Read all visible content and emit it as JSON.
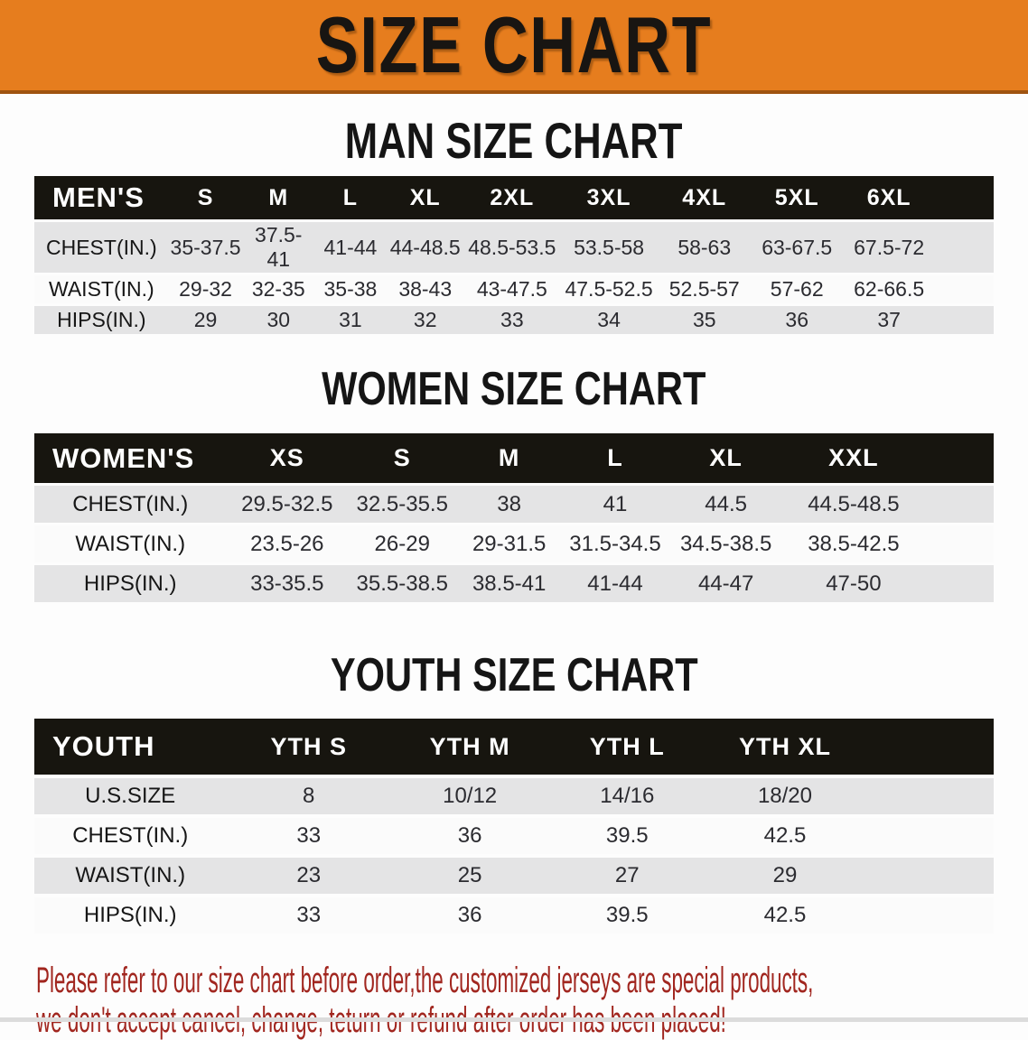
{
  "banner": {
    "title": "SIZE CHART"
  },
  "colors": {
    "banner_bg": "#e67d1e",
    "banner_text": "#181512",
    "header_bar_bg": "#17150f",
    "header_bar_text": "#ffffff",
    "stripe_grey": "#e4e4e5",
    "stripe_white": "#fbfbfb",
    "disclaimer_red": "#a1261f",
    "footer_strip": "#dcdcdc"
  },
  "disclaimer": {
    "line1": "Please refer to our size chart before order,the customized jerseys are special products,",
    "line2": "we don't accept cancel, change, teturn or refund after order has been placed!"
  },
  "chart_data": [
    {
      "type": "table",
      "title": "MAN SIZE CHART",
      "header_label": "MEN'S",
      "columns": [
        "S",
        "M",
        "L",
        "XL",
        "2XL",
        "3XL",
        "4XL",
        "5XL",
        "6XL"
      ],
      "rows": [
        {
          "label": "CHEST(IN.)",
          "values": [
            "35-37.5",
            "37.5-41",
            "41-44",
            "44-48.5",
            "48.5-53.5",
            "53.5-58",
            "58-63",
            "63-67.5",
            "67.5-72"
          ]
        },
        {
          "label": "WAIST(IN.)",
          "values": [
            "29-32",
            "32-35",
            "35-38",
            "38-43",
            "43-47.5",
            "47.5-52.5",
            "52.5-57",
            "57-62",
            "62-66.5"
          ]
        },
        {
          "label": "HIPS(IN.)",
          "values": [
            "29",
            "30",
            "31",
            "32",
            "33",
            "34",
            "35",
            "36",
            "37"
          ]
        }
      ]
    },
    {
      "type": "table",
      "title": "WOMEN SIZE CHART",
      "header_label": "WOMEN'S",
      "columns": [
        "XS",
        "S",
        "M",
        "L",
        "XL",
        "XXL"
      ],
      "rows": [
        {
          "label": "CHEST(IN.)",
          "values": [
            "29.5-32.5",
            "32.5-35.5",
            "38",
            "41",
            "44.5",
            "44.5-48.5"
          ]
        },
        {
          "label": "WAIST(IN.)",
          "values": [
            "23.5-26",
            "26-29",
            "29-31.5",
            "31.5-34.5",
            "34.5-38.5",
            "38.5-42.5"
          ]
        },
        {
          "label": "HIPS(IN.)",
          "values": [
            "33-35.5",
            "35.5-38.5",
            "38.5-41",
            "41-44",
            "44-47",
            "47-50"
          ]
        }
      ]
    },
    {
      "type": "table",
      "title": "YOUTH SIZE CHART",
      "header_label": "YOUTH",
      "columns": [
        "YTH S",
        "YTH M",
        "YTH L",
        "YTH XL"
      ],
      "rows": [
        {
          "label": "U.S.SIZE",
          "values": [
            "8",
            "10/12",
            "14/16",
            "18/20"
          ]
        },
        {
          "label": "CHEST(IN.)",
          "values": [
            "33",
            "36",
            "39.5",
            "42.5"
          ]
        },
        {
          "label": "WAIST(IN.)",
          "values": [
            "23",
            "25",
            "27",
            "29"
          ]
        },
        {
          "label": "HIPS(IN.)",
          "values": [
            "33",
            "36",
            "39.5",
            "42.5"
          ]
        }
      ]
    }
  ]
}
